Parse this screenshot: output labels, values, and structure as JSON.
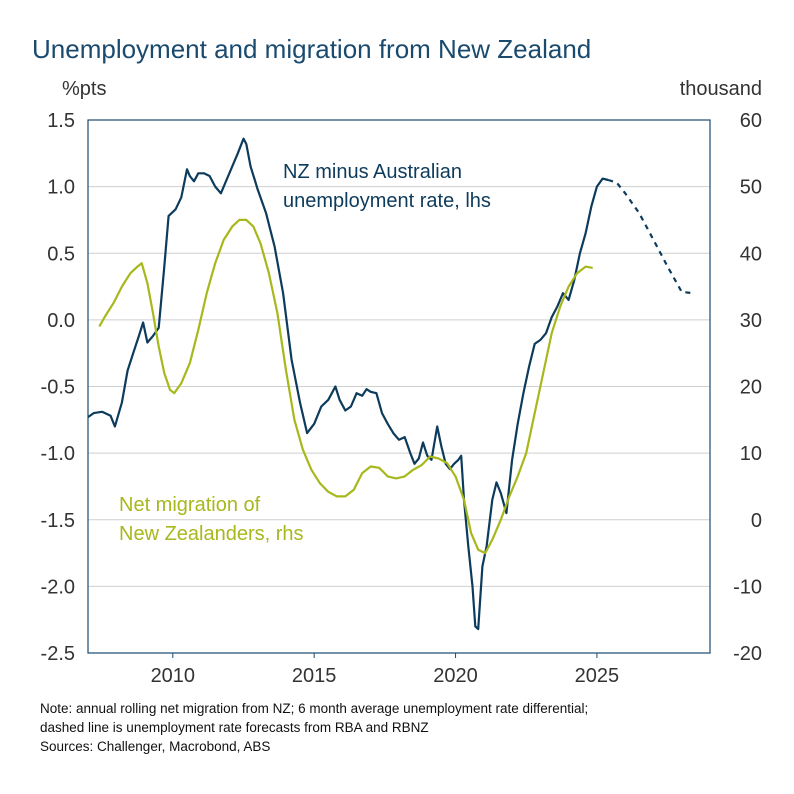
{
  "chart_data": {
    "type": "line",
    "title": "Unemployment and migration from New Zealand",
    "left_unit": "%pts",
    "right_unit": "thousand",
    "x_range": [
      2007.0,
      2029.0
    ],
    "y_left_range": [
      -2.5,
      1.5
    ],
    "y_right_range": [
      -20,
      60
    ],
    "x_ticks": [
      2010,
      2015,
      2020,
      2025
    ],
    "y_left_ticks": [
      "1.5",
      "1.0",
      "0.5",
      "0.0",
      "-0.5",
      "-1.0",
      "-1.5",
      "-2.0",
      "-2.5"
    ],
    "y_right_ticks": [
      "60",
      "50",
      "40",
      "30",
      "20",
      "10",
      "0",
      "-10",
      "-20"
    ],
    "grid": "horizontal",
    "series": [
      {
        "name": "NZ minus Australian unemployment rate, lhs",
        "axis": "left",
        "color": "#0d3b5c",
        "dashed_from": 2025.4,
        "points": [
          [
            2007.0,
            -0.73
          ],
          [
            2007.2,
            -0.7
          ],
          [
            2007.5,
            -0.69
          ],
          [
            2007.8,
            -0.72
          ],
          [
            2007.95,
            -0.8
          ],
          [
            2008.2,
            -0.62
          ],
          [
            2008.4,
            -0.38
          ],
          [
            2008.6,
            -0.25
          ],
          [
            2008.8,
            -0.12
          ],
          [
            2008.95,
            -0.02
          ],
          [
            2009.1,
            -0.17
          ],
          [
            2009.3,
            -0.12
          ],
          [
            2009.5,
            -0.06
          ],
          [
            2009.7,
            0.4
          ],
          [
            2009.85,
            0.78
          ],
          [
            2010.1,
            0.83
          ],
          [
            2010.3,
            0.92
          ],
          [
            2010.5,
            1.13
          ],
          [
            2010.6,
            1.08
          ],
          [
            2010.75,
            1.04
          ],
          [
            2010.9,
            1.1
          ],
          [
            2011.1,
            1.1
          ],
          [
            2011.3,
            1.08
          ],
          [
            2011.5,
            1.0
          ],
          [
            2011.7,
            0.95
          ],
          [
            2011.9,
            1.05
          ],
          [
            2012.1,
            1.15
          ],
          [
            2012.3,
            1.25
          ],
          [
            2012.5,
            1.36
          ],
          [
            2012.6,
            1.32
          ],
          [
            2012.75,
            1.15
          ],
          [
            2012.9,
            1.05
          ],
          [
            2013.0,
            0.98
          ],
          [
            2013.3,
            0.8
          ],
          [
            2013.6,
            0.55
          ],
          [
            2013.9,
            0.2
          ],
          [
            2014.2,
            -0.3
          ],
          [
            2014.5,
            -0.62
          ],
          [
            2014.75,
            -0.85
          ],
          [
            2015.0,
            -0.78
          ],
          [
            2015.25,
            -0.65
          ],
          [
            2015.5,
            -0.6
          ],
          [
            2015.75,
            -0.5
          ],
          [
            2015.9,
            -0.6
          ],
          [
            2016.1,
            -0.68
          ],
          [
            2016.3,
            -0.65
          ],
          [
            2016.5,
            -0.55
          ],
          [
            2016.7,
            -0.57
          ],
          [
            2016.85,
            -0.52
          ],
          [
            2017.0,
            -0.54
          ],
          [
            2017.2,
            -0.55
          ],
          [
            2017.4,
            -0.7
          ],
          [
            2017.6,
            -0.78
          ],
          [
            2017.8,
            -0.85
          ],
          [
            2018.0,
            -0.9
          ],
          [
            2018.2,
            -0.88
          ],
          [
            2018.4,
            -1.0
          ],
          [
            2018.55,
            -1.08
          ],
          [
            2018.7,
            -1.04
          ],
          [
            2018.85,
            -0.92
          ],
          [
            2019.0,
            -1.02
          ],
          [
            2019.15,
            -1.05
          ],
          [
            2019.35,
            -0.8
          ],
          [
            2019.5,
            -0.95
          ],
          [
            2019.65,
            -1.08
          ],
          [
            2019.8,
            -1.12
          ],
          [
            2019.95,
            -1.08
          ],
          [
            2020.1,
            -1.05
          ],
          [
            2020.2,
            -1.02
          ],
          [
            2020.3,
            -1.35
          ],
          [
            2020.45,
            -1.7
          ],
          [
            2020.6,
            -2.0
          ],
          [
            2020.7,
            -2.3
          ],
          [
            2020.8,
            -2.32
          ],
          [
            2020.95,
            -1.85
          ],
          [
            2021.1,
            -1.7
          ],
          [
            2021.3,
            -1.35
          ],
          [
            2021.45,
            -1.22
          ],
          [
            2021.6,
            -1.3
          ],
          [
            2021.8,
            -1.45
          ],
          [
            2022.0,
            -1.05
          ],
          [
            2022.2,
            -0.78
          ],
          [
            2022.4,
            -0.55
          ],
          [
            2022.6,
            -0.35
          ],
          [
            2022.8,
            -0.18
          ],
          [
            2023.0,
            -0.15
          ],
          [
            2023.2,
            -0.1
          ],
          [
            2023.4,
            0.02
          ],
          [
            2023.6,
            0.1
          ],
          [
            2023.8,
            0.2
          ],
          [
            2024.0,
            0.15
          ],
          [
            2024.2,
            0.3
          ],
          [
            2024.4,
            0.5
          ],
          [
            2024.6,
            0.65
          ],
          [
            2024.8,
            0.85
          ],
          [
            2025.0,
            1.0
          ],
          [
            2025.2,
            1.06
          ],
          [
            2025.4,
            1.05
          ],
          [
            2025.7,
            1.03
          ],
          [
            2026.0,
            0.95
          ],
          [
            2026.5,
            0.8
          ],
          [
            2027.0,
            0.6
          ],
          [
            2027.5,
            0.4
          ],
          [
            2028.0,
            0.21
          ],
          [
            2028.4,
            0.2
          ]
        ]
      },
      {
        "name": "Net migration of New Zealanders, rhs",
        "axis": "right",
        "color": "#a7b81c",
        "points": [
          [
            2007.4,
            29
          ],
          [
            2007.6,
            30.5
          ],
          [
            2007.9,
            32.5
          ],
          [
            2008.2,
            35
          ],
          [
            2008.5,
            37
          ],
          [
            2008.75,
            38
          ],
          [
            2008.9,
            38.5
          ],
          [
            2009.1,
            35.5
          ],
          [
            2009.3,
            31
          ],
          [
            2009.5,
            26
          ],
          [
            2009.7,
            22
          ],
          [
            2009.9,
            19.5
          ],
          [
            2010.05,
            19
          ],
          [
            2010.3,
            20.5
          ],
          [
            2010.6,
            23.5
          ],
          [
            2010.9,
            28.5
          ],
          [
            2011.2,
            34
          ],
          [
            2011.5,
            38.5
          ],
          [
            2011.8,
            42
          ],
          [
            2012.1,
            44
          ],
          [
            2012.35,
            45
          ],
          [
            2012.6,
            45
          ],
          [
            2012.85,
            44
          ],
          [
            2013.1,
            41.5
          ],
          [
            2013.4,
            37
          ],
          [
            2013.7,
            31
          ],
          [
            2014.0,
            22.5
          ],
          [
            2014.3,
            15
          ],
          [
            2014.6,
            10.5
          ],
          [
            2014.9,
            7.5
          ],
          [
            2015.2,
            5.5
          ],
          [
            2015.5,
            4.2
          ],
          [
            2015.8,
            3.5
          ],
          [
            2016.1,
            3.5
          ],
          [
            2016.4,
            4.5
          ],
          [
            2016.7,
            7
          ],
          [
            2017.0,
            8
          ],
          [
            2017.3,
            7.8
          ],
          [
            2017.6,
            6.5
          ],
          [
            2017.9,
            6.2
          ],
          [
            2018.2,
            6.5
          ],
          [
            2018.5,
            7.5
          ],
          [
            2018.8,
            8.2
          ],
          [
            2019.1,
            9.5
          ],
          [
            2019.4,
            9.2
          ],
          [
            2019.7,
            8.5
          ],
          [
            2020.0,
            6.5
          ],
          [
            2020.3,
            3
          ],
          [
            2020.55,
            -2
          ],
          [
            2020.8,
            -4.5
          ],
          [
            2021.05,
            -5
          ],
          [
            2021.3,
            -3
          ],
          [
            2021.6,
            0
          ],
          [
            2021.9,
            3.5
          ],
          [
            2022.2,
            6.5
          ],
          [
            2022.5,
            10
          ],
          [
            2022.8,
            16
          ],
          [
            2023.1,
            22
          ],
          [
            2023.4,
            28
          ],
          [
            2023.7,
            32
          ],
          [
            2024.0,
            35
          ],
          [
            2024.3,
            37
          ],
          [
            2024.6,
            38
          ],
          [
            2024.85,
            37.8
          ]
        ]
      }
    ],
    "annotations": [
      {
        "series": 0,
        "lines": [
          "NZ minus Australian",
          "unemployment rate, lhs"
        ]
      },
      {
        "series": 1,
        "lines": [
          "Net migration of",
          "New Zealanders, rhs"
        ]
      }
    ]
  },
  "notes": [
    "Note: annual rolling net migration from NZ; 6 month average unemployment rate differential;",
    "dashed line is unemployment rate forecasts from RBA and RBNZ",
    "Sources: Challenger, Macrobond, ABS"
  ]
}
